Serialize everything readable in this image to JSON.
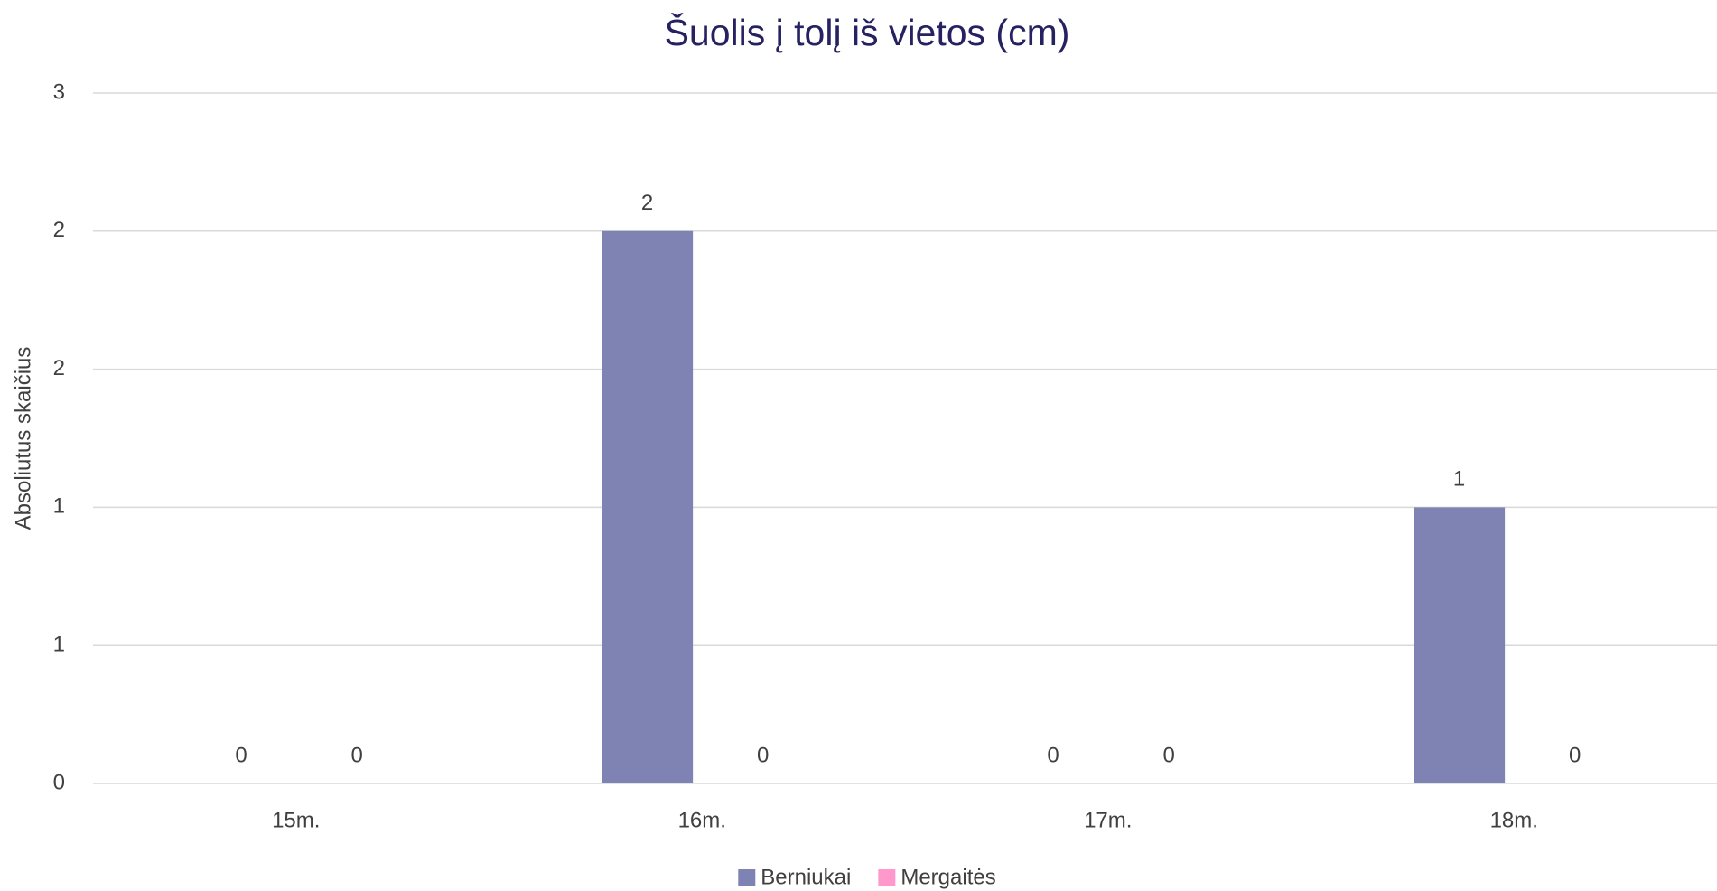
{
  "chart_data": {
    "type": "bar",
    "title": "Šuolis į tolį iš vietos (cm)",
    "y_label": "Absoliutus skaičius",
    "categories": [
      "15m.",
      "16m.",
      "17m.",
      "18m."
    ],
    "series": [
      {
        "name": "Berniukai",
        "color": "#7f83b4",
        "values": [
          0,
          2,
          0,
          1
        ]
      },
      {
        "name": "Mergaitės",
        "color": "#ff99cc",
        "values": [
          0,
          0,
          0,
          0
        ]
      }
    ],
    "ylim": [
      0,
      2.5
    ],
    "yticks": [
      0,
      {
        "value": 0.5,
        "label": "1"
      },
      1,
      {
        "value": 1.5,
        "label": "2"
      },
      2,
      {
        "value": 2.5,
        "label": "3"
      }
    ],
    "grid": true,
    "legend": "bottom"
  }
}
